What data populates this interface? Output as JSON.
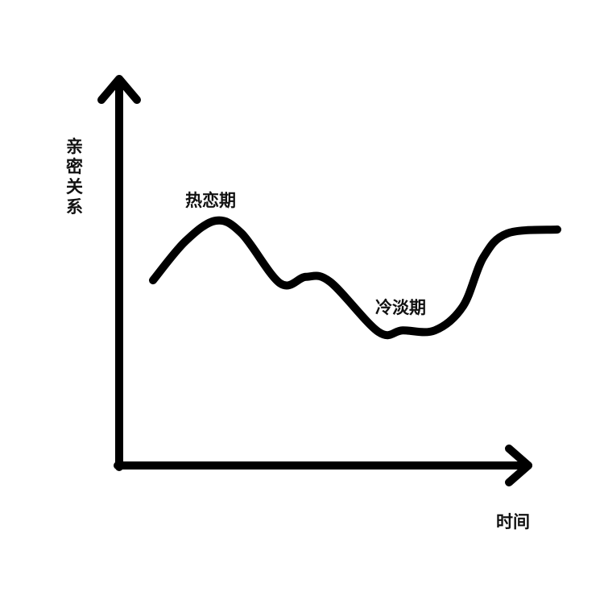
{
  "chart_data": {
    "type": "line",
    "title": "",
    "xlabel": "时间",
    "ylabel": "亲密关系",
    "xlim": [
      0,
      110
    ],
    "ylim": [
      0,
      100
    ],
    "grid": false,
    "ticks": false,
    "line_color": "#000000",
    "x": [
      8.4,
      16.4,
      24,
      30.4,
      40,
      46.4,
      52.4,
      64.4,
      70.4,
      78.4,
      85.4,
      90.4,
      96.4,
      108.8
    ],
    "y": [
      48.1,
      58.2,
      63.6,
      60.3,
      47.3,
      49,
      47.7,
      34.7,
      35.1,
      35.1,
      41.4,
      54,
      60.3,
      61.3
    ],
    "annotations": [
      {
        "text": "热恋期",
        "x": 24,
        "y": 63.6
      },
      {
        "text": "冷淡期",
        "x": 70.4,
        "y": 35.1
      }
    ]
  }
}
